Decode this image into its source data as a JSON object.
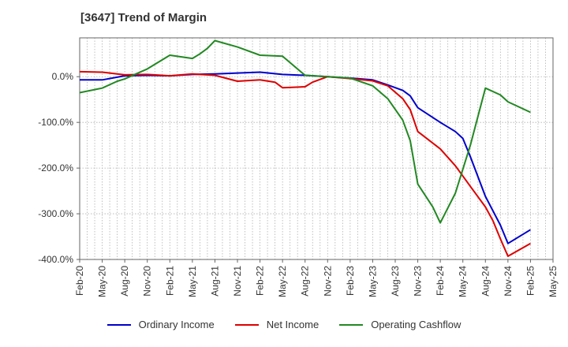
{
  "chart_data": {
    "type": "line",
    "title": "[3647]  Trend of Margin",
    "xlabel": "",
    "ylabel": "",
    "ylim": [
      -400,
      85
    ],
    "y_ticks": [
      0,
      -100,
      -200,
      -300,
      -400
    ],
    "y_tick_labels": [
      "0.0%",
      "-100.0%",
      "-200.0%",
      "-300.0%",
      "-400.0%"
    ],
    "x_tick_labels": [
      "Feb-20",
      "May-20",
      "Aug-20",
      "Nov-20",
      "Feb-21",
      "May-21",
      "Aug-21",
      "Nov-21",
      "Feb-22",
      "May-22",
      "Aug-22",
      "Nov-22",
      "Feb-23",
      "May-23",
      "Aug-23",
      "Nov-23",
      "Feb-24",
      "May-24",
      "Aug-24",
      "Nov-24",
      "Feb-25",
      "May-25"
    ],
    "x_months": [
      "2020-02",
      "2020-03",
      "2020-04",
      "2020-05",
      "2020-06",
      "2020-07",
      "2020-08",
      "2020-09",
      "2020-10",
      "2020-11",
      "2020-12",
      "2021-01",
      "2021-02",
      "2021-03",
      "2021-04",
      "2021-05",
      "2021-06",
      "2021-07",
      "2021-08",
      "2021-09",
      "2021-10",
      "2021-11",
      "2021-12",
      "2022-01",
      "2022-02",
      "2022-03",
      "2022-04",
      "2022-05",
      "2022-06",
      "2022-07",
      "2022-08",
      "2022-09",
      "2022-10",
      "2022-11",
      "2022-12",
      "2023-01",
      "2023-02",
      "2023-03",
      "2023-04",
      "2023-05",
      "2023-06",
      "2023-07",
      "2023-08",
      "2023-09",
      "2023-10",
      "2023-11",
      "2023-12",
      "2024-01",
      "2024-02",
      "2024-03",
      "2024-04",
      "2024-05",
      "2024-06",
      "2024-07",
      "2024-08",
      "2024-09",
      "2024-10",
      "2024-11",
      "2024-12",
      "2025-01",
      "2025-02",
      "2025-03",
      "2025-04",
      "2025-05"
    ],
    "grid": true,
    "legend_position": "bottom",
    "series": [
      {
        "name": "Ordinary Income",
        "color": "#0000cc",
        "points": [
          [
            "2020-02",
            -7
          ],
          [
            "2020-05",
            -7
          ],
          [
            "2020-08",
            2
          ],
          [
            "2020-11",
            3
          ],
          [
            "2021-02",
            2
          ],
          [
            "2021-05",
            5
          ],
          [
            "2021-08",
            6
          ],
          [
            "2021-11",
            8
          ],
          [
            "2022-02",
            10
          ],
          [
            "2022-05",
            5
          ],
          [
            "2022-08",
            3
          ],
          [
            "2022-11",
            0
          ],
          [
            "2023-02",
            -3
          ],
          [
            "2023-05",
            -7
          ],
          [
            "2023-07",
            -18
          ],
          [
            "2023-09",
            -30
          ],
          [
            "2023-10",
            -42
          ],
          [
            "2023-11",
            -68
          ],
          [
            "2024-02",
            -100
          ],
          [
            "2024-04",
            -120
          ],
          [
            "2024-05",
            -135
          ],
          [
            "2024-06",
            -175
          ],
          [
            "2024-08",
            -262
          ],
          [
            "2024-10",
            -325
          ],
          [
            "2024-11",
            -365
          ],
          [
            "2025-02",
            -335
          ]
        ]
      },
      {
        "name": "Net Income",
        "color": "#dd0000",
        "points": [
          [
            "2020-02",
            11
          ],
          [
            "2020-05",
            10
          ],
          [
            "2020-08",
            4
          ],
          [
            "2020-11",
            5
          ],
          [
            "2021-02",
            2
          ],
          [
            "2021-05",
            6
          ],
          [
            "2021-08",
            3
          ],
          [
            "2021-11",
            -10
          ],
          [
            "2022-02",
            -7
          ],
          [
            "2022-04",
            -12
          ],
          [
            "2022-05",
            -24
          ],
          [
            "2022-08",
            -22
          ],
          [
            "2022-09",
            -12
          ],
          [
            "2022-11",
            0
          ],
          [
            "2023-02",
            -4
          ],
          [
            "2023-05",
            -9
          ],
          [
            "2023-07",
            -20
          ],
          [
            "2023-09",
            -48
          ],
          [
            "2023-10",
            -72
          ],
          [
            "2023-11",
            -120
          ],
          [
            "2024-02",
            -158
          ],
          [
            "2024-04",
            -195
          ],
          [
            "2024-06",
            -240
          ],
          [
            "2024-08",
            -285
          ],
          [
            "2024-09",
            -315
          ],
          [
            "2024-10",
            -355
          ],
          [
            "2024-11",
            -393
          ],
          [
            "2025-02",
            -365
          ]
        ]
      },
      {
        "name": "Operating Cashflow",
        "color": "#228822",
        "points": [
          [
            "2020-02",
            -35
          ],
          [
            "2020-05",
            -25
          ],
          [
            "2020-07",
            -10
          ],
          [
            "2020-08",
            -5
          ],
          [
            "2020-11",
            17
          ],
          [
            "2021-02",
            47
          ],
          [
            "2021-05",
            40
          ],
          [
            "2021-06",
            50
          ],
          [
            "2021-07",
            62
          ],
          [
            "2021-08",
            79
          ],
          [
            "2021-11",
            65
          ],
          [
            "2022-02",
            47
          ],
          [
            "2022-05",
            45
          ],
          [
            "2022-08",
            3
          ],
          [
            "2022-11",
            0
          ],
          [
            "2023-02",
            -3
          ],
          [
            "2023-05",
            -20
          ],
          [
            "2023-07",
            -48
          ],
          [
            "2023-09",
            -95
          ],
          [
            "2023-10",
            -140
          ],
          [
            "2023-11",
            -235
          ],
          [
            "2024-01",
            -285
          ],
          [
            "2024-02",
            -320
          ],
          [
            "2024-04",
            -255
          ],
          [
            "2024-06",
            -150
          ],
          [
            "2024-08",
            -25
          ],
          [
            "2024-10",
            -40
          ],
          [
            "2024-11",
            -55
          ],
          [
            "2025-02",
            -78
          ]
        ]
      }
    ]
  }
}
